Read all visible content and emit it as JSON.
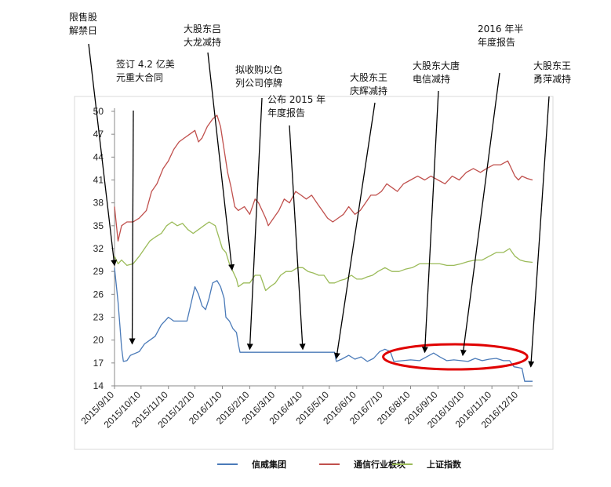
{
  "chart_data": {
    "type": "line",
    "title": "",
    "xlabel": "",
    "ylabel": "",
    "ylim": [
      14,
      50
    ],
    "yticks": [
      14,
      17,
      20,
      23,
      26,
      29,
      32,
      35,
      38,
      41,
      44,
      47,
      50
    ],
    "xticks": [
      "2015/9/10",
      "2015/10/10",
      "2015/11/10",
      "2015/12/10",
      "2016/1/10",
      "2016/2/10",
      "2016/3/10",
      "2016/4/10",
      "2016/5/10",
      "2016/6/10",
      "2016/7/10",
      "2016/8/10",
      "2016/9/10",
      "2016/10/10",
      "2016/11/10",
      "2016/12/10"
    ],
    "x_start": "2015/9/10",
    "x_end": "2016/12/26",
    "legend_position": "bottom",
    "grid": false,
    "series": [
      {
        "name": "信威集团",
        "color": "#4a7ab8",
        "points": [
          [
            "2015/9/10",
            29.5
          ],
          [
            "2015/9/14",
            25.0
          ],
          [
            "2015/9/16",
            22.0
          ],
          [
            "2015/9/18",
            19.0
          ],
          [
            "2015/9/20",
            17.2
          ],
          [
            "2015/9/24",
            17.3
          ],
          [
            "2015/9/28",
            18.0
          ],
          [
            "2015/10/8",
            18.5
          ],
          [
            "2015/10/14",
            19.5
          ],
          [
            "2015/10/20",
            20.0
          ],
          [
            "2015/10/26",
            20.5
          ],
          [
            "2015/11/2",
            22.0
          ],
          [
            "2015/11/6",
            22.5
          ],
          [
            "2015/11/10",
            23.0
          ],
          [
            "2015/11/16",
            22.5
          ],
          [
            "2015/11/24",
            22.5
          ],
          [
            "2015/12/1",
            22.5
          ],
          [
            "2015/12/6",
            25.0
          ],
          [
            "2015/12/10",
            27.0
          ],
          [
            "2015/12/14",
            26.0
          ],
          [
            "2015/12/18",
            24.5
          ],
          [
            "2015/12/22",
            24.0
          ],
          [
            "2015/12/26",
            25.5
          ],
          [
            "2015/12/30",
            27.5
          ],
          [
            "2016/1/4",
            27.8
          ],
          [
            "2016/1/8",
            27.0
          ],
          [
            "2016/1/12",
            25.5
          ],
          [
            "2016/1/14",
            23.0
          ],
          [
            "2016/1/18",
            22.5
          ],
          [
            "2016/1/22",
            21.5
          ],
          [
            "2016/1/26",
            21.0
          ],
          [
            "2016/1/28",
            19.5
          ],
          [
            "2016/1/30",
            18.4
          ],
          [
            "2016/2/10",
            18.4
          ],
          [
            "2016/3/10",
            18.4
          ],
          [
            "2016/4/10",
            18.4
          ],
          [
            "2016/5/10",
            18.4
          ],
          [
            "2016/5/16",
            18.4
          ],
          [
            "2016/5/18",
            17.2
          ],
          [
            "2016/5/24",
            17.5
          ],
          [
            "2016/6/1",
            18.0
          ],
          [
            "2016/6/8",
            17.5
          ],
          [
            "2016/6/15",
            17.8
          ],
          [
            "2016/6/22",
            17.2
          ],
          [
            "2016/6/29",
            17.6
          ],
          [
            "2016/7/6",
            18.5
          ],
          [
            "2016/7/12",
            18.8
          ],
          [
            "2016/7/18",
            18.5
          ],
          [
            "2016/7/22",
            17.2
          ],
          [
            "2016/8/1",
            17.3
          ],
          [
            "2016/8/10",
            17.4
          ],
          [
            "2016/8/20",
            17.3
          ],
          [
            "2016/8/28",
            17.8
          ],
          [
            "2016/9/5",
            18.3
          ],
          [
            "2016/9/12",
            17.8
          ],
          [
            "2016/9/20",
            17.3
          ],
          [
            "2016/9/28",
            17.4
          ],
          [
            "2016/10/6",
            17.3
          ],
          [
            "2016/10/14",
            17.2
          ],
          [
            "2016/10/22",
            17.6
          ],
          [
            "2016/10/30",
            17.3
          ],
          [
            "2016/11/7",
            17.5
          ],
          [
            "2016/11/15",
            17.6
          ],
          [
            "2016/11/23",
            17.3
          ],
          [
            "2016/11/30",
            17.3
          ],
          [
            "2016/12/5",
            16.5
          ],
          [
            "2016/12/10",
            16.4
          ],
          [
            "2016/12/14",
            16.3
          ],
          [
            "2016/12/17",
            14.6
          ],
          [
            "2016/12/26",
            14.6
          ]
        ]
      },
      {
        "name": "通信行业板块",
        "color": "#c0504d",
        "points": [
          [
            "2015/9/10",
            37.5
          ],
          [
            "2015/9/14",
            33.0
          ],
          [
            "2015/9/18",
            35.0
          ],
          [
            "2015/9/24",
            35.5
          ],
          [
            "2015/10/1",
            35.5
          ],
          [
            "2015/10/8",
            36.0
          ],
          [
            "2015/10/16",
            37.0
          ],
          [
            "2015/10/22",
            39.5
          ],
          [
            "2015/10/28",
            40.5
          ],
          [
            "2015/11/4",
            42.5
          ],
          [
            "2015/11/10",
            43.5
          ],
          [
            "2015/11/16",
            45.0
          ],
          [
            "2015/11/22",
            46.0
          ],
          [
            "2015/11/28",
            46.5
          ],
          [
            "2015/12/4",
            47.0
          ],
          [
            "2015/12/10",
            47.5
          ],
          [
            "2015/12/14",
            46.0
          ],
          [
            "2015/12/18",
            46.5
          ],
          [
            "2015/12/24",
            48.0
          ],
          [
            "2015/12/30",
            49.0
          ],
          [
            "2016/1/4",
            49.5
          ],
          [
            "2016/1/8",
            48.0
          ],
          [
            "2016/1/12",
            45.0
          ],
          [
            "2016/1/16",
            42.0
          ],
          [
            "2016/1/20",
            40.0
          ],
          [
            "2016/1/24",
            37.5
          ],
          [
            "2016/1/28",
            37.0
          ],
          [
            "2016/2/4",
            37.5
          ],
          [
            "2016/2/10",
            36.5
          ],
          [
            "2016/2/16",
            38.5
          ],
          [
            "2016/2/20",
            38.0
          ],
          [
            "2016/2/24",
            37.0
          ],
          [
            "2016/2/28",
            36.0
          ],
          [
            "2016/3/2",
            35.0
          ],
          [
            "2016/3/8",
            36.0
          ],
          [
            "2016/3/14",
            37.0
          ],
          [
            "2016/3/20",
            38.5
          ],
          [
            "2016/3/26",
            38.0
          ],
          [
            "2016/4/2",
            39.5
          ],
          [
            "2016/4/8",
            39.0
          ],
          [
            "2016/4/14",
            38.5
          ],
          [
            "2016/4/20",
            39.0
          ],
          [
            "2016/4/26",
            38.0
          ],
          [
            "2016/5/2",
            37.0
          ],
          [
            "2016/5/8",
            36.0
          ],
          [
            "2016/5/14",
            35.5
          ],
          [
            "2016/5/20",
            36.0
          ],
          [
            "2016/5/26",
            36.5
          ],
          [
            "2016/6/1",
            37.5
          ],
          [
            "2016/6/8",
            36.5
          ],
          [
            "2016/6/14",
            37.0
          ],
          [
            "2016/6/20",
            38.0
          ],
          [
            "2016/6/26",
            39.0
          ],
          [
            "2016/7/2",
            39.0
          ],
          [
            "2016/7/8",
            39.5
          ],
          [
            "2016/7/14",
            40.5
          ],
          [
            "2016/7/20",
            40.0
          ],
          [
            "2016/7/26",
            39.5
          ],
          [
            "2016/8/2",
            40.5
          ],
          [
            "2016/8/10",
            41.0
          ],
          [
            "2016/8/18",
            41.5
          ],
          [
            "2016/8/26",
            41.0
          ],
          [
            "2016/9/2",
            41.5
          ],
          [
            "2016/9/10",
            41.0
          ],
          [
            "2016/9/18",
            40.5
          ],
          [
            "2016/9/26",
            41.5
          ],
          [
            "2016/10/4",
            41.0
          ],
          [
            "2016/10/12",
            42.0
          ],
          [
            "2016/10/20",
            42.5
          ],
          [
            "2016/10/28",
            42.0
          ],
          [
            "2016/11/4",
            42.5
          ],
          [
            "2016/11/12",
            43.0
          ],
          [
            "2016/11/20",
            43.0
          ],
          [
            "2016/11/28",
            43.5
          ],
          [
            "2016/12/2",
            42.5
          ],
          [
            "2016/12/6",
            41.5
          ],
          [
            "2016/12/10",
            41.0
          ],
          [
            "2016/12/14",
            41.5
          ],
          [
            "2016/12/20",
            41.2
          ],
          [
            "2016/12/26",
            41.0
          ]
        ]
      },
      {
        "name": "上证指数",
        "color": "#9bbb59",
        "points": [
          [
            "2015/9/10",
            31.0
          ],
          [
            "2015/9/14",
            30.0
          ],
          [
            "2015/9/18",
            30.5
          ],
          [
            "2015/9/24",
            29.8
          ],
          [
            "2015/10/1",
            30.0
          ],
          [
            "2015/10/8",
            31.0
          ],
          [
            "2015/10/14",
            32.0
          ],
          [
            "2015/10/20",
            33.0
          ],
          [
            "2015/10/26",
            33.5
          ],
          [
            "2015/11/2",
            34.0
          ],
          [
            "2015/11/8",
            35.0
          ],
          [
            "2015/11/14",
            35.5
          ],
          [
            "2015/11/20",
            35.0
          ],
          [
            "2015/11/26",
            35.3
          ],
          [
            "2015/12/2",
            34.5
          ],
          [
            "2015/12/8",
            34.0
          ],
          [
            "2015/12/14",
            34.5
          ],
          [
            "2015/12/20",
            35.0
          ],
          [
            "2015/12/26",
            35.5
          ],
          [
            "2016/1/2",
            35.0
          ],
          [
            "2016/1/6",
            33.5
          ],
          [
            "2016/1/10",
            32.0
          ],
          [
            "2016/1/14",
            31.5
          ],
          [
            "2016/1/18",
            30.0
          ],
          [
            "2016/1/22",
            29.0
          ],
          [
            "2016/1/26",
            28.0
          ],
          [
            "2016/1/28",
            27.0
          ],
          [
            "2016/2/3",
            27.5
          ],
          [
            "2016/2/10",
            27.5
          ],
          [
            "2016/2/16",
            28.5
          ],
          [
            "2016/2/22",
            28.5
          ],
          [
            "2016/2/28",
            26.5
          ],
          [
            "2016/3/4",
            27.0
          ],
          [
            "2016/3/10",
            27.5
          ],
          [
            "2016/3/16",
            28.5
          ],
          [
            "2016/3/22",
            29.0
          ],
          [
            "2016/3/28",
            29.0
          ],
          [
            "2016/4/4",
            29.5
          ],
          [
            "2016/4/10",
            29.5
          ],
          [
            "2016/4/16",
            29.0
          ],
          [
            "2016/4/22",
            28.8
          ],
          [
            "2016/4/28",
            28.5
          ],
          [
            "2016/5/4",
            28.5
          ],
          [
            "2016/5/10",
            27.5
          ],
          [
            "2016/5/16",
            27.5
          ],
          [
            "2016/5/22",
            27.8
          ],
          [
            "2016/5/28",
            28.0
          ],
          [
            "2016/6/4",
            28.5
          ],
          [
            "2016/6/10",
            28.0
          ],
          [
            "2016/6/16",
            28.0
          ],
          [
            "2016/6/22",
            28.3
          ],
          [
            "2016/6/28",
            28.5
          ],
          [
            "2016/7/4",
            29.0
          ],
          [
            "2016/7/12",
            29.5
          ],
          [
            "2016/7/20",
            29.0
          ],
          [
            "2016/7/28",
            29.0
          ],
          [
            "2016/8/4",
            29.3
          ],
          [
            "2016/8/12",
            29.5
          ],
          [
            "2016/8/20",
            30.0
          ],
          [
            "2016/8/28",
            30.0
          ],
          [
            "2016/9/4",
            30.0
          ],
          [
            "2016/9/12",
            30.0
          ],
          [
            "2016/9/20",
            29.8
          ],
          [
            "2016/9/28",
            29.8
          ],
          [
            "2016/10/6",
            30.0
          ],
          [
            "2016/10/14",
            30.3
          ],
          [
            "2016/10/22",
            30.5
          ],
          [
            "2016/10/30",
            30.5
          ],
          [
            "2016/11/7",
            31.0
          ],
          [
            "2016/11/15",
            31.5
          ],
          [
            "2016/11/23",
            31.5
          ],
          [
            "2016/11/30",
            32.0
          ],
          [
            "2016/12/6",
            31.0
          ],
          [
            "2016/12/12",
            30.5
          ],
          [
            "2016/12/18",
            30.3
          ],
          [
            "2016/12/26",
            30.2
          ]
        ]
      }
    ],
    "annotations": [
      {
        "lines": [
          "限售股",
          "解禁日"
        ],
        "target_date": "2015/9/10",
        "target_value": 29.8
      },
      {
        "lines": [
          "签订 4.2 亿美",
          "元重大合同"
        ],
        "target_date": "2015/9/30",
        "target_value": 19.5
      },
      {
        "lines": [
          "大股东吕",
          "大龙减持"
        ],
        "target_date": "2016/1/21",
        "target_value": 29.2
      },
      {
        "lines": [
          "拟收购以色",
          "列公司停牌"
        ],
        "target_date": "2016/2/10",
        "target_value": 18.8
      },
      {
        "lines": [
          "公布 2015 年",
          "年度报告"
        ],
        "target_date": "2016/4/10",
        "target_value": 18.8
      },
      {
        "lines": [
          "大股东王",
          "庆辉减持"
        ],
        "target_date": "2016/5/18",
        "target_value": 17.6
      },
      {
        "lines": [
          "大股东大唐",
          "电信减持"
        ],
        "target_date": "2016/8/26",
        "target_value": 18.4
      },
      {
        "lines": [
          "2016 年半",
          "年度报告"
        ],
        "target_date": "2016/10/8",
        "target_value": 18.0
      },
      {
        "lines": [
          "大股东王",
          "勇萍减持"
        ],
        "target_date": "2016/12/24",
        "target_value": 16.5
      }
    ],
    "highlight_ellipse": {
      "color": "#e00000",
      "date_from": "2016/7/10",
      "date_to": "2016/12/20",
      "value_center": 17.8
    }
  }
}
